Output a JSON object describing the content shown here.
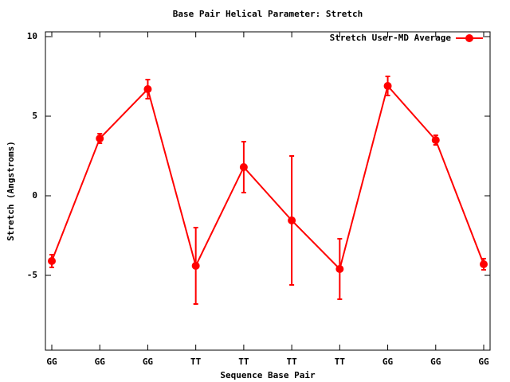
{
  "chart_data": {
    "type": "line",
    "title": "Base Pair Helical Parameter: Stretch",
    "x_label": "Sequence Base Pair",
    "y_label": "Stretch (Angstroms)",
    "categories": [
      "GG",
      "GG",
      "GG",
      "TT",
      "TT",
      "TT",
      "TT",
      "GG",
      "GG",
      "GG"
    ],
    "series": [
      {
        "name": "Stretch User-MD Average",
        "color": "#ff0000",
        "values": [
          -4.1,
          3.6,
          6.7,
          -4.4,
          1.8,
          -1.55,
          -4.6,
          6.9,
          3.5,
          -4.3
        ],
        "errors": [
          0.4,
          0.3,
          0.6,
          2.4,
          1.6,
          4.05,
          1.9,
          0.6,
          0.3,
          0.35
        ]
      }
    ],
    "ylim": [
      -9.7,
      10.3
    ],
    "yticks": [
      -5,
      0,
      5,
      10
    ],
    "legend": "top-right"
  }
}
